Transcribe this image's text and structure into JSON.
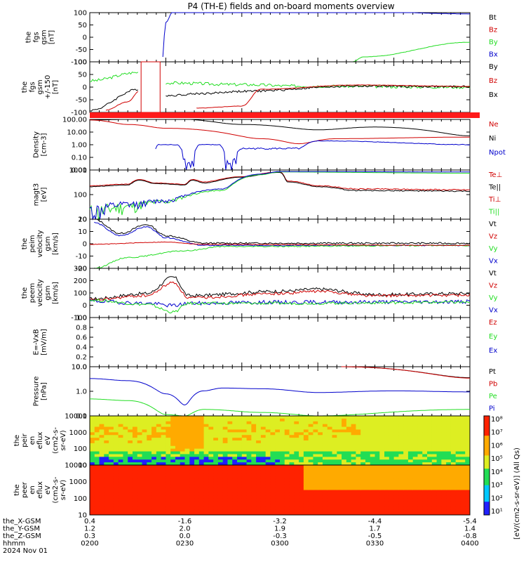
{
  "title": "P4 (TH-E) fields and on-board moments overview",
  "colors": {
    "black": "#000000",
    "red": "#d00000",
    "green": "#22dd22",
    "blue": "#0000cc"
  },
  "panels": [
    {
      "id": "fgs",
      "ylabel": [
        "the",
        "fgs",
        "gsm",
        "[nT]"
      ],
      "yticks": [
        "100",
        "50",
        "0",
        "-50",
        "-100"
      ],
      "legend": [
        {
          "t": "Bt",
          "c": "black"
        },
        {
          "t": "Bz",
          "c": "red"
        },
        {
          "t": "By",
          "c": "green"
        },
        {
          "t": "Bx",
          "c": "blue"
        }
      ]
    },
    {
      "id": "fgs2",
      "ylabel": [
        "the",
        "fgs",
        "gsm",
        "+/-150",
        "[nT]"
      ],
      "yticks": [
        "100",
        "50",
        "0",
        "-50",
        "-100"
      ],
      "legend": [
        {
          "t": "By",
          "c": "black"
        },
        {
          "t": "Bz",
          "c": "red"
        },
        {
          "t": "Bx",
          "c": "black"
        }
      ]
    },
    {
      "id": "dens",
      "ylabel": [
        "Density",
        "[cm-3]"
      ],
      "yticks": [
        "100.00",
        "10.00",
        "1.00",
        "0.10",
        "0.01"
      ],
      "legend": [
        {
          "t": "Ne",
          "c": "red"
        },
        {
          "t": "Ni",
          "c": "black"
        },
        {
          "t": "Npot",
          "c": "blue"
        }
      ]
    },
    {
      "id": "temp",
      "ylabel": [
        "magt3",
        "[eV]"
      ],
      "yticks": [
        "1000",
        "100",
        "10"
      ],
      "legend": [
        {
          "t": "Te⊥",
          "c": "red"
        },
        {
          "t": "Te||",
          "c": "black"
        },
        {
          "t": "Ti⊥",
          "c": "red"
        },
        {
          "t": "Ti||",
          "c": "green"
        }
      ]
    },
    {
      "id": "veie",
      "ylabel": [
        "the",
        "peim",
        "velocity",
        "gsm",
        "[km/s]"
      ],
      "yticks": [
        "20",
        "10",
        "0",
        "-10",
        "-20"
      ],
      "legend": [
        {
          "t": "Vt",
          "c": "black"
        },
        {
          "t": "Vz",
          "c": "red"
        },
        {
          "t": "Vy",
          "c": "green"
        },
        {
          "t": "Vx",
          "c": "blue"
        }
      ]
    },
    {
      "id": "veem",
      "ylabel": [
        "the",
        "peem",
        "velocity",
        "gsm",
        "[km/s]"
      ],
      "yticks": [
        "300",
        "200",
        "100",
        "0",
        "-100"
      ],
      "legend": [
        {
          "t": "Vt",
          "c": "black"
        },
        {
          "t": "Vz",
          "c": "red"
        },
        {
          "t": "Vy",
          "c": "green"
        },
        {
          "t": "Vx",
          "c": "blue"
        }
      ]
    },
    {
      "id": "efield",
      "ylabel": [
        "E=-VxB",
        "[mV/m]"
      ],
      "yticks": [
        "1.0",
        "0.8",
        "0.6",
        "0.4",
        "0.2",
        "0.0"
      ],
      "legend": [
        {
          "t": "Ez",
          "c": "red"
        },
        {
          "t": "Ey",
          "c": "green"
        },
        {
          "t": "Ex",
          "c": "blue"
        }
      ]
    },
    {
      "id": "press",
      "ylabel": [
        "Pressure",
        "[nPa]"
      ],
      "yticks": [
        "10.0",
        "1.0",
        "0.1"
      ],
      "legend": [
        {
          "t": "Pt",
          "c": "black"
        },
        {
          "t": "Pb",
          "c": "red"
        },
        {
          "t": "Pe",
          "c": "green"
        },
        {
          "t": "Pi",
          "c": "blue"
        }
      ]
    },
    {
      "id": "peir",
      "ylabel": [
        "the",
        "peir",
        "en",
        "eflux",
        "eV",
        "(cm2-s-",
        "sr-eV)"
      ],
      "yticks": [
        "10000",
        "1000",
        "100",
        "10"
      ],
      "legend": []
    },
    {
      "id": "peer",
      "ylabel": [
        "the",
        "peer",
        "en",
        "eflux",
        "eV",
        "(cm2-s-",
        "sr-eV)"
      ],
      "yticks": [
        "10000",
        "1000",
        "100",
        "10"
      ],
      "legend": []
    }
  ],
  "colorbar": {
    "label": "[eV/(cm2-s-sr-eV)] (All Qs)",
    "ticks": [
      "10⁸",
      "10⁷",
      "10⁶",
      "10⁵",
      "10⁴",
      "10³",
      "10²",
      "10¹"
    ]
  },
  "xaxis": {
    "rows": [
      {
        "label": "the_X-GSM",
        "values": [
          "0.4",
          "-1.6",
          "-3.2",
          "-4.4",
          "-5.4"
        ]
      },
      {
        "label": "the_Y-GSM",
        "values": [
          "1.2",
          "2.0",
          "1.9",
          "1.7",
          "1.4"
        ]
      },
      {
        "label": "the_Z-GSM",
        "values": [
          "0.3",
          "0.0",
          "-0.3",
          "-0.5",
          "-0.8"
        ]
      },
      {
        "label": "hhmm",
        "values": [
          "0200",
          "0230",
          "0300",
          "0330",
          "0400"
        ]
      }
    ],
    "date": "2024 Nov 01"
  },
  "chart_data": [
    {
      "type": "line",
      "title": "fgs gsm",
      "x": [
        "0200",
        "0230",
        "0300",
        "0330",
        "0400"
      ],
      "ylabel": "[nT]",
      "ylim": [
        -100,
        100
      ],
      "series": [
        {
          "name": "Bt",
          "values": [
            null,
            null,
            null,
            null,
            null
          ]
        },
        {
          "name": "Bx",
          "values": [
            null,
            100,
            120,
            110,
            95
          ]
        },
        {
          "name": "By",
          "values": [
            null,
            null,
            null,
            -60,
            -20
          ]
        }
      ]
    },
    {
      "type": "line",
      "title": "fgs gsm +/-150",
      "x": [
        "0200",
        "0210",
        "0230",
        "0245",
        "0300",
        "0330",
        "0400"
      ],
      "ylabel": "[nT]",
      "ylim": [
        -120,
        120
      ],
      "series": [
        {
          "name": "By",
          "values": [
            30,
            60,
            25,
            15,
            5,
            5,
            0
          ]
        },
        {
          "name": "Bz",
          "values": [
            -80,
            -20,
            -110,
            -60,
            -5,
            5,
            0
          ]
        },
        {
          "name": "Bx",
          "values": [
            -100,
            -10,
            -30,
            -20,
            -5,
            5,
            0
          ]
        }
      ]
    },
    {
      "type": "line",
      "title": "Density",
      "x": [
        "0200",
        "0220",
        "0230",
        "0245",
        "0300",
        "0330",
        "0400"
      ],
      "ylabel": "[cm-3]",
      "ylim": [
        0.01,
        100
      ],
      "series": [
        {
          "name": "Ne",
          "values": [
            90,
            30,
            20,
            8,
            2,
            3,
            4
          ]
        },
        {
          "name": "Ni",
          "values": [
            100,
            120,
            100,
            40,
            15,
            20,
            5
          ]
        },
        {
          "name": "Npot",
          "values": [
            null,
            1.0,
            0.02,
            1.0,
            0.5,
            2,
            1
          ]
        }
      ]
    },
    {
      "type": "line",
      "title": "magt3",
      "x": [
        "0200",
        "0220",
        "0230",
        "0245",
        "0300",
        "0330",
        "0400"
      ],
      "ylabel": "[eV]",
      "ylim": [
        3,
        4000
      ],
      "series": [
        {
          "name": "Te⊥",
          "values": [
            400,
            900,
            800,
            1000,
            3000,
            300,
            250
          ]
        },
        {
          "name": "Te||",
          "values": [
            350,
            800,
            700,
            900,
            2800,
            250,
            200
          ]
        },
        {
          "name": "Ti⊥",
          "values": [
            10,
            20,
            40,
            120,
            2500,
            3000,
            3500
          ]
        },
        {
          "name": "Ti||",
          "values": [
            8,
            15,
            30,
            100,
            2000,
            2500,
            3000
          ]
        }
      ]
    },
    {
      "type": "line",
      "title": "peim velocity gsm",
      "x": [
        "0200",
        "0215",
        "0230",
        "0245",
        "0300",
        "0330",
        "0400"
      ],
      "ylabel": "[km/s]",
      "ylim": [
        -20,
        25
      ],
      "series": [
        {
          "name": "Vt",
          "values": [
            25,
            15,
            22,
            3,
            2,
            2,
            3
          ]
        },
        {
          "name": "Vz",
          "values": [
            2,
            3,
            4,
            1,
            0,
            0,
            1
          ]
        },
        {
          "name": "Vy",
          "values": [
            -20,
            -10,
            -4,
            0,
            0,
            1,
            1
          ]
        },
        {
          "name": "Vx",
          "values": [
            22,
            12,
            20,
            2,
            1,
            1,
            2
          ]
        }
      ]
    },
    {
      "type": "line",
      "title": "peem velocity gsm",
      "x": [
        "0200",
        "0215",
        "0230",
        "0245",
        "0300",
        "0330",
        "0400"
      ],
      "ylabel": "[km/s]",
      "ylim": [
        -150,
        300
      ],
      "series": [
        {
          "name": "Vt",
          "values": [
            20,
            80,
            200,
            40,
            80,
            90,
            60
          ]
        },
        {
          "name": "Vz",
          "values": [
            10,
            60,
            160,
            20,
            70,
            80,
            50
          ]
        },
        {
          "name": "Vy",
          "values": [
            0,
            -10,
            -80,
            -20,
            -20,
            -10,
            -10
          ]
        },
        {
          "name": "Vx",
          "values": [
            -10,
            -30,
            -60,
            -20,
            -20,
            -10,
            -10
          ]
        }
      ]
    },
    {
      "type": "line",
      "title": "E=-VxB",
      "x": [
        "0200",
        "0230",
        "0300",
        "0330",
        "0400"
      ],
      "ylabel": "[mV/m]",
      "ylim": [
        0,
        1
      ],
      "series": [
        {
          "name": "Ez",
          "values": [
            null,
            null,
            null,
            null,
            null
          ]
        },
        {
          "name": "Ey",
          "values": [
            null,
            null,
            null,
            null,
            null
          ]
        },
        {
          "name": "Ex",
          "values": [
            null,
            null,
            null,
            null,
            null
          ]
        }
      ]
    },
    {
      "type": "line",
      "title": "Pressure",
      "x": [
        "0200",
        "0215",
        "0230",
        "0245",
        "0300",
        "0330",
        "0400"
      ],
      "ylabel": "[nPa]",
      "ylim": [
        0.05,
        40
      ],
      "series": [
        {
          "name": "Pt",
          "values": [
            null,
            null,
            null,
            null,
            null,
            15,
            9
          ]
        },
        {
          "name": "Pb",
          "values": [
            null,
            null,
            null,
            null,
            null,
            14,
            8
          ]
        },
        {
          "name": "Pe",
          "values": [
            0.5,
            0.2,
            0.05,
            0.1,
            0.08,
            0.1,
            0.12
          ]
        },
        {
          "name": "Pi",
          "values": [
            8,
            3,
            0.25,
            1.5,
            2,
            1.8,
            1.5
          ]
        }
      ]
    },
    {
      "type": "heatmap",
      "title": "peir en eflux",
      "x": [
        "0200",
        "0230",
        "0300",
        "0330",
        "0400"
      ],
      "ylabel": "eV",
      "ylim": [
        10,
        20000
      ]
    },
    {
      "type": "heatmap",
      "title": "peer en eflux",
      "x": [
        "0200",
        "0230",
        "0300",
        "0330",
        "0400"
      ],
      "ylabel": "eV",
      "ylim": [
        10,
        20000
      ]
    }
  ]
}
